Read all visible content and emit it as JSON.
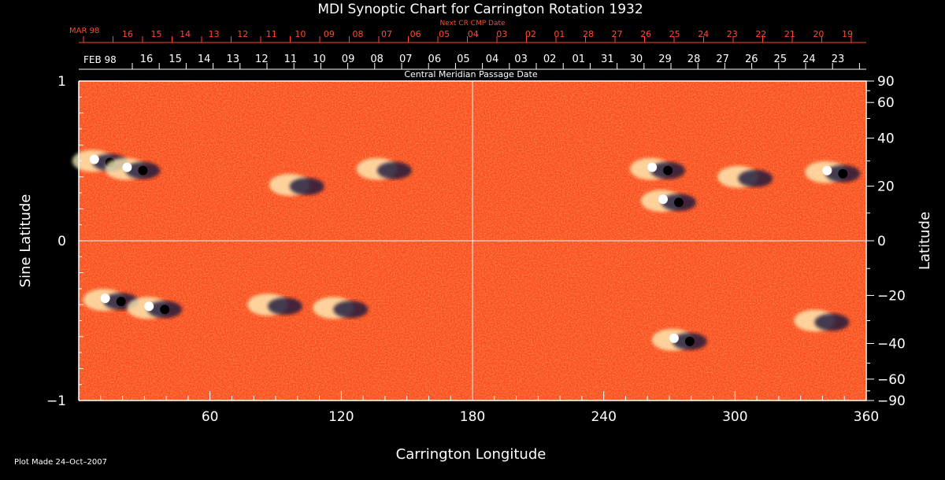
{
  "chart_data": {
    "type": "heatmap",
    "title": "MDI Synoptic Chart for Carrington Rotation 1932",
    "xlabel": "Carrington Longitude",
    "ylabel_left": "Sine Latitude",
    "ylabel_right": "Latitude",
    "xlim": [
      0,
      360
    ],
    "ylim": [
      -1,
      1
    ],
    "x_ticks": [
      60,
      120,
      180,
      240,
      300,
      360
    ],
    "y_ticks_left": [
      "1",
      "0",
      "−1"
    ],
    "y_ticks_right": [
      90,
      60,
      40,
      20,
      0,
      -20,
      -40,
      -60,
      -90
    ],
    "gridlines": {
      "vertical_at": 180,
      "horizontal_at": 0
    },
    "top_axis_next": {
      "title": "Next CR CMP Date",
      "month_label": "MAR 98",
      "day_labels": [
        "16",
        "15",
        "14",
        "13",
        "12",
        "11",
        "10",
        "09",
        "08",
        "07",
        "06",
        "05",
        "04",
        "03",
        "02",
        "01",
        "28",
        "27",
        "26",
        "25",
        "24",
        "23",
        "22",
        "21",
        "20",
        "19"
      ],
      "color": "#ff4a2a"
    },
    "top_axis_cmp": {
      "title": "Central Meridian Passage Date",
      "month_label": "FEB 98",
      "day_labels": [
        "16",
        "15",
        "14",
        "13",
        "12",
        "11",
        "10",
        "09",
        "08",
        "07",
        "06",
        "05",
        "04",
        "03",
        "02",
        "01",
        "31",
        "30",
        "29",
        "28",
        "27",
        "26",
        "25",
        "24",
        "23"
      ]
    },
    "active_regions": [
      {
        "lon": 10,
        "sinlat": 0.5,
        "polarity": "bipolar"
      },
      {
        "lon": 25,
        "sinlat": 0.45,
        "polarity": "bipolar"
      },
      {
        "lon": 100,
        "sinlat": 0.35,
        "polarity": "mixed"
      },
      {
        "lon": 140,
        "sinlat": 0.45,
        "polarity": "mixed"
      },
      {
        "lon": 265,
        "sinlat": 0.45,
        "polarity": "bipolar"
      },
      {
        "lon": 270,
        "sinlat": 0.25,
        "polarity": "bipolar"
      },
      {
        "lon": 305,
        "sinlat": 0.4,
        "polarity": "mixed"
      },
      {
        "lon": 345,
        "sinlat": 0.43,
        "polarity": "bipolar"
      },
      {
        "lon": 15,
        "sinlat": -0.37,
        "polarity": "bipolar"
      },
      {
        "lon": 35,
        "sinlat": -0.42,
        "polarity": "bipolar"
      },
      {
        "lon": 90,
        "sinlat": -0.4,
        "polarity": "mixed"
      },
      {
        "lon": 120,
        "sinlat": -0.42,
        "polarity": "mixed"
      },
      {
        "lon": 275,
        "sinlat": -0.62,
        "polarity": "bipolar"
      },
      {
        "lon": 340,
        "sinlat": -0.5,
        "polarity": "mixed"
      }
    ],
    "colors": {
      "background": "#ff4a1a",
      "positive": "#fff8c0",
      "negative": "#14143c"
    }
  },
  "footer": {
    "plot_made": "Plot Made 24–Oct–2007"
  }
}
